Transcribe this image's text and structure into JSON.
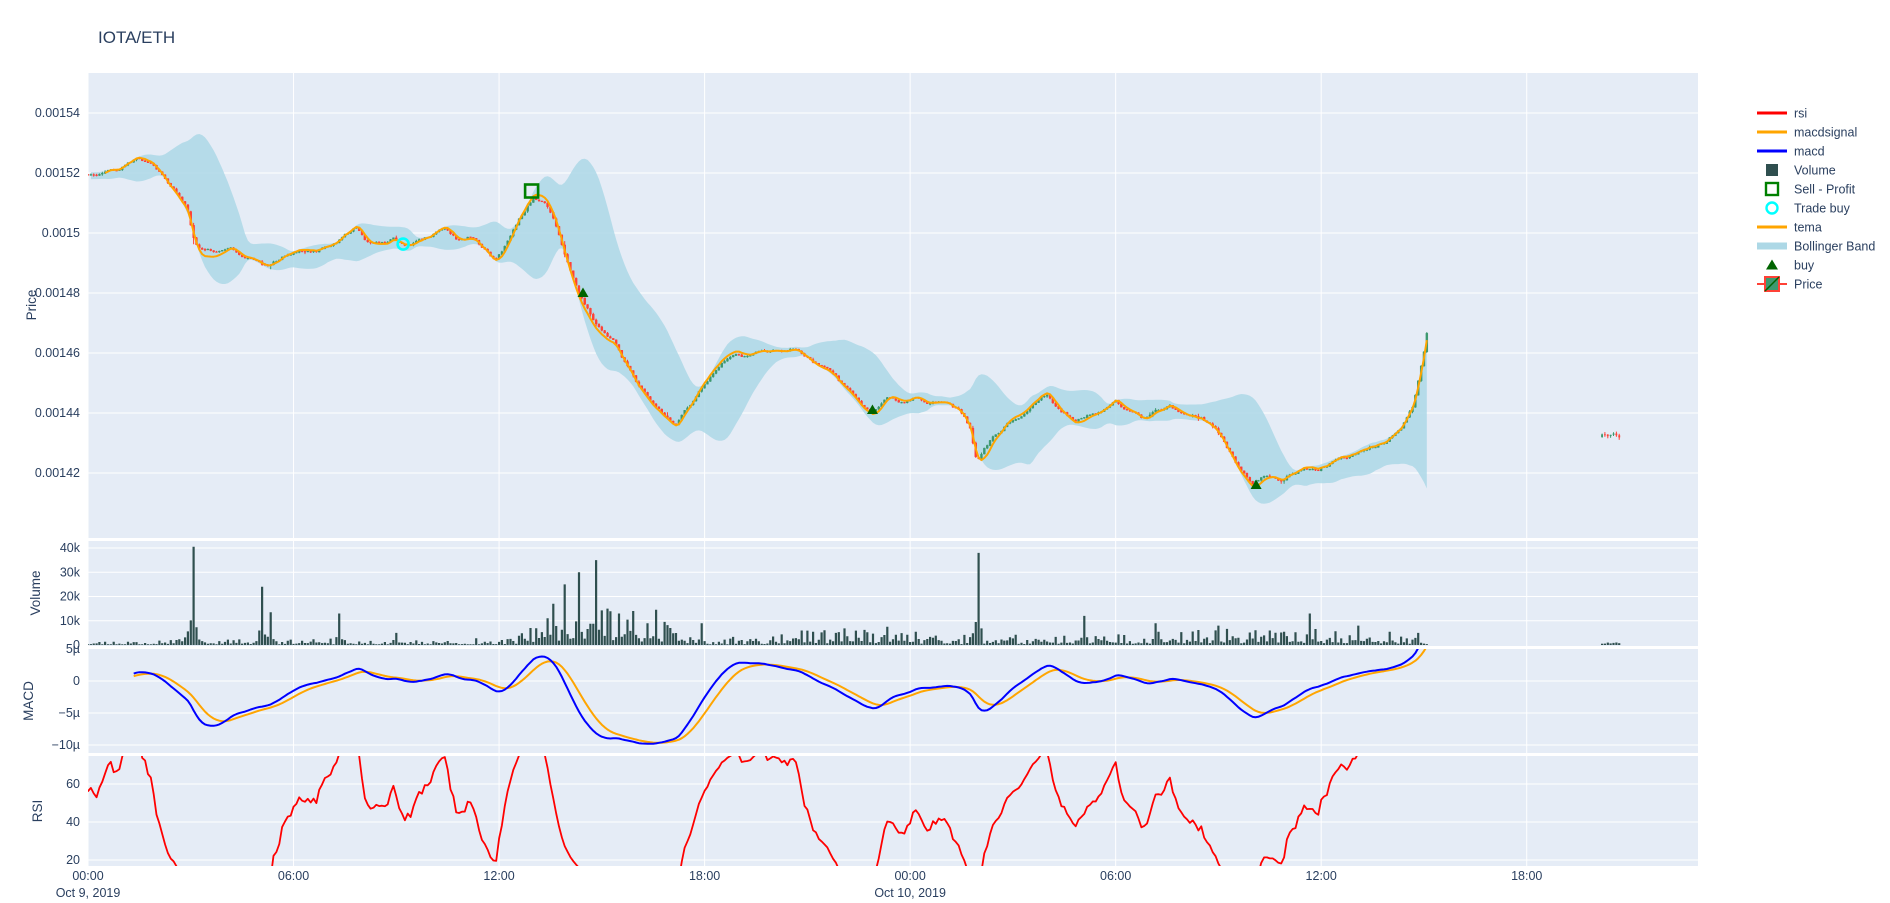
{
  "title": "IOTA/ETH",
  "chart_data": {
    "type": "candlestick-multi-panel",
    "title": "IOTA/ETH",
    "x_axis": {
      "range_hours": [
        0,
        47
      ],
      "start_label": "Oct 9, 2019 00:00",
      "ticks": [
        {
          "t": 0,
          "label": "00:00",
          "date": "Oct 9, 2019"
        },
        {
          "t": 6,
          "label": "06:00"
        },
        {
          "t": 12,
          "label": "12:00"
        },
        {
          "t": 18,
          "label": "18:00"
        },
        {
          "t": 24,
          "label": "00:00",
          "date": "Oct 10, 2019"
        },
        {
          "t": 30,
          "label": "06:00"
        },
        {
          "t": 36,
          "label": "12:00"
        },
        {
          "t": 42,
          "label": "18:00"
        }
      ]
    },
    "panels": [
      {
        "id": "price",
        "axis_title": "Price",
        "yticks": [
          {
            "v": 0.00154,
            "label": "0.00154"
          },
          {
            "v": 0.00152,
            "label": "0.00152"
          },
          {
            "v": 0.0015,
            "label": "0.0015"
          },
          {
            "v": 0.00148,
            "label": "0.00148"
          },
          {
            "v": 0.00146,
            "label": "0.00146"
          },
          {
            "v": 0.00144,
            "label": "0.00144"
          },
          {
            "v": 0.00142,
            "label": "0.00142"
          }
        ]
      },
      {
        "id": "volume",
        "axis_title": "Volume",
        "yticks": [
          {
            "v": 40000,
            "label": "40k"
          },
          {
            "v": 30000,
            "label": "30k"
          },
          {
            "v": 20000,
            "label": "20k"
          },
          {
            "v": 10000,
            "label": "10k"
          },
          {
            "v": 0,
            "label": "0"
          }
        ]
      },
      {
        "id": "macd",
        "axis_title": "MACD",
        "yticks": [
          {
            "v": 5,
            "label": "5µ"
          },
          {
            "v": 0,
            "label": "0"
          },
          {
            "v": -5,
            "label": "−5µ"
          },
          {
            "v": -10,
            "label": "−10µ"
          }
        ]
      },
      {
        "id": "rsi",
        "axis_title": "RSI",
        "yticks": [
          {
            "v": 60,
            "label": "60"
          },
          {
            "v": 40,
            "label": "40"
          },
          {
            "v": 20,
            "label": "20"
          }
        ]
      }
    ],
    "legend": [
      {
        "label": "rsi",
        "glyph": "line",
        "color": "#FF0000"
      },
      {
        "label": "macdsignal",
        "glyph": "line",
        "color": "#FFA500"
      },
      {
        "label": "macd",
        "glyph": "line",
        "color": "#0000FF"
      },
      {
        "label": "Volume",
        "glyph": "square-filled",
        "color": "#2F4F4F"
      },
      {
        "label": "Sell - Profit",
        "glyph": "square-open",
        "color": "#008000"
      },
      {
        "label": "Trade buy",
        "glyph": "circle-open",
        "color": "#00FFFF"
      },
      {
        "label": "tema",
        "glyph": "line",
        "color": "#FFA500"
      },
      {
        "label": "Bollinger Band",
        "glyph": "band",
        "color": "#ADD8E6"
      },
      {
        "label": "buy",
        "glyph": "triangle-filled",
        "color": "#006400"
      },
      {
        "label": "Price",
        "glyph": "candlestick",
        "color": "#3D9970"
      }
    ],
    "colors": {
      "paper": "#ffffff",
      "plot_bg": "#E5ECF6",
      "grid": "#ffffff",
      "text": "#2a3f5f",
      "rsi": "#FF0000",
      "macdsignal": "#FFA500",
      "macd": "#0000FF",
      "tema": "#FFA500",
      "volume": "#2F4F4F",
      "sell_profit": "#008000",
      "trade_buy": "#00FFFF",
      "bollinger": "#ADD8E6",
      "buy": "#006400",
      "candle_up": "#3D9970",
      "candle_down": "#FF4136"
    },
    "series_meta": {
      "candle_interval_minutes": 5,
      "data_start_hour": -1.5,
      "data_end_hour": 39.1,
      "indicators": [
        "tema",
        "bollinger(20,2.2)",
        "macd(12,26,9)",
        "rsi(14)"
      ]
    },
    "price_anchors": [
      [
        -1.5,
        0.001519
      ],
      [
        0,
        0.00152
      ],
      [
        0.8,
        0.001521
      ],
      [
        1.2,
        0.001523
      ],
      [
        1.5,
        0.0015245
      ],
      [
        1.8,
        0.001523
      ],
      [
        2.2,
        0.001519
      ],
      [
        2.6,
        0.001514
      ],
      [
        2.9,
        0.001509
      ],
      [
        3.05,
        0.0015
      ],
      [
        3.2,
        0.001495
      ],
      [
        3.6,
        0.001494
      ],
      [
        4.2,
        0.001495
      ],
      [
        4.8,
        0.001492
      ],
      [
        5.3,
        0.001489
      ],
      [
        5.7,
        0.001492
      ],
      [
        6.2,
        0.001494
      ],
      [
        6.7,
        0.001495
      ],
      [
        7.1,
        0.001496
      ],
      [
        7.5,
        0.0015
      ],
      [
        7.8,
        0.001502
      ],
      [
        8.1,
        0.001498
      ],
      [
        8.5,
        0.001497
      ],
      [
        8.9,
        0.001499
      ],
      [
        9.2,
        0.001496
      ],
      [
        9.6,
        0.001497
      ],
      [
        10.0,
        0.001499
      ],
      [
        10.4,
        0.001501
      ],
      [
        10.8,
        0.001497
      ],
      [
        11.2,
        0.001499
      ],
      [
        11.6,
        0.001495
      ],
      [
        11.9,
        0.001491
      ],
      [
        12.2,
        0.001496
      ],
      [
        12.5,
        0.001503
      ],
      [
        12.8,
        0.001509
      ],
      [
        13.0,
        0.001512
      ],
      [
        13.3,
        0.00151
      ],
      [
        13.6,
        0.001504
      ],
      [
        13.9,
        0.001494
      ],
      [
        14.2,
        0.001485
      ],
      [
        14.5,
        0.001477
      ],
      [
        14.8,
        0.001471
      ],
      [
        15.1,
        0.001468
      ],
      [
        15.4,
        0.001464
      ],
      [
        15.7,
        0.001457
      ],
      [
        16.0,
        0.001451
      ],
      [
        16.3,
        0.001447
      ],
      [
        16.6,
        0.001443
      ],
      [
        16.9,
        0.001439
      ],
      [
        17.15,
        0.001436
      ],
      [
        17.4,
        0.00144
      ],
      [
        17.7,
        0.001445
      ],
      [
        18.0,
        0.00145
      ],
      [
        18.4,
        0.001456
      ],
      [
        18.8,
        0.00146
      ],
      [
        19.2,
        0.001459
      ],
      [
        19.6,
        0.001462
      ],
      [
        20.0,
        0.001461
      ],
      [
        20.6,
        0.001462
      ],
      [
        21.1,
        0.001458
      ],
      [
        21.6,
        0.001454
      ],
      [
        22.1,
        0.001448
      ],
      [
        22.5,
        0.001444
      ],
      [
        22.9,
        0.00144
      ],
      [
        23.3,
        0.001444
      ],
      [
        23.7,
        0.001443
      ],
      [
        24.1,
        0.001445
      ],
      [
        24.6,
        0.001443
      ],
      [
        25.1,
        0.001444
      ],
      [
        25.5,
        0.00144
      ],
      [
        25.75,
        0.001435
      ],
      [
        25.95,
        0.001424
      ],
      [
        26.15,
        0.001428
      ],
      [
        26.5,
        0.001433
      ],
      [
        26.9,
        0.001437
      ],
      [
        27.3,
        0.00144
      ],
      [
        27.7,
        0.001443
      ],
      [
        28.0,
        0.001446
      ],
      [
        28.4,
        0.001441
      ],
      [
        28.8,
        0.001438
      ],
      [
        29.2,
        0.001441
      ],
      [
        29.6,
        0.001442
      ],
      [
        30.0,
        0.001444
      ],
      [
        30.4,
        0.00144
      ],
      [
        30.8,
        0.001438
      ],
      [
        31.2,
        0.00144
      ],
      [
        31.6,
        0.001442
      ],
      [
        32.0,
        0.001439
      ],
      [
        32.5,
        0.001438
      ],
      [
        32.9,
        0.001435
      ],
      [
        33.2,
        0.001429
      ],
      [
        33.6,
        0.001421
      ],
      [
        34.0,
        0.001415
      ],
      [
        34.4,
        0.001418
      ],
      [
        34.8,
        0.001417
      ],
      [
        35.1,
        0.00142
      ],
      [
        35.5,
        0.001422
      ],
      [
        35.9,
        0.001421
      ],
      [
        36.4,
        0.001424
      ],
      [
        36.9,
        0.001426
      ],
      [
        37.4,
        0.001428
      ],
      [
        37.9,
        0.001431
      ],
      [
        38.3,
        0.001435
      ],
      [
        38.7,
        0.001443
      ],
      [
        39.0,
        0.00146
      ],
      [
        39.1,
        0.001468
      ]
    ],
    "orphan_candles": {
      "t_start": 44.2,
      "t_end": 44.75,
      "base_price": 0.001432
    },
    "volume_envelope": [
      [
        -1.5,
        350
      ],
      [
        2.0,
        450
      ],
      [
        2.9,
        1800
      ],
      [
        3.4,
        900
      ],
      [
        5.8,
        700
      ],
      [
        7.0,
        900
      ],
      [
        8.0,
        600
      ],
      [
        11.5,
        900
      ],
      [
        12.8,
        1800
      ],
      [
        13.3,
        3500
      ],
      [
        14.5,
        5500
      ],
      [
        16.0,
        4200
      ],
      [
        17.2,
        2500
      ],
      [
        18.0,
        900
      ],
      [
        20.0,
        1300
      ],
      [
        21.0,
        2200
      ],
      [
        23.0,
        2200
      ],
      [
        24.5,
        1800
      ],
      [
        25.5,
        1300
      ],
      [
        26.3,
        1800
      ],
      [
        27.5,
        1100
      ],
      [
        29.0,
        1400
      ],
      [
        30.5,
        1400
      ],
      [
        31.5,
        1800
      ],
      [
        33.0,
        2200
      ],
      [
        34.5,
        1800
      ],
      [
        36.0,
        2200
      ],
      [
        37.5,
        2000
      ],
      [
        38.5,
        1400
      ],
      [
        39.1,
        1100
      ]
    ],
    "volume_spikes": [
      [
        3.1,
        40500
      ],
      [
        5.05,
        24000
      ],
      [
        5.3,
        13500
      ],
      [
        7.3,
        13000
      ],
      [
        9.0,
        5000
      ],
      [
        12.9,
        7000
      ],
      [
        13.6,
        17000
      ],
      [
        13.9,
        25000
      ],
      [
        14.3,
        30000
      ],
      [
        14.8,
        35000
      ],
      [
        15.2,
        15000
      ],
      [
        15.5,
        13000
      ],
      [
        15.9,
        14000
      ],
      [
        16.3,
        9000
      ],
      [
        16.6,
        14500
      ],
      [
        17.9,
        9000
      ],
      [
        20.8,
        6000
      ],
      [
        21.8,
        5000
      ],
      [
        23.3,
        7500
      ],
      [
        24.2,
        5500
      ],
      [
        26.0,
        38000
      ],
      [
        29.1,
        12000
      ],
      [
        31.2,
        9000
      ],
      [
        33.0,
        8000
      ],
      [
        34.5,
        6000
      ],
      [
        35.7,
        13000
      ],
      [
        37.1,
        8000
      ],
      [
        38.8,
        5000
      ]
    ],
    "markers": {
      "sell_profit": [
        [
          12.95,
          0.001514
        ]
      ],
      "trade_buy": [
        [
          9.2,
          0.0014963
        ]
      ],
      "buy": [
        [
          14.45,
          0.00148
        ],
        [
          22.9,
          0.001441
        ],
        [
          34.1,
          0.001416
        ]
      ]
    }
  }
}
